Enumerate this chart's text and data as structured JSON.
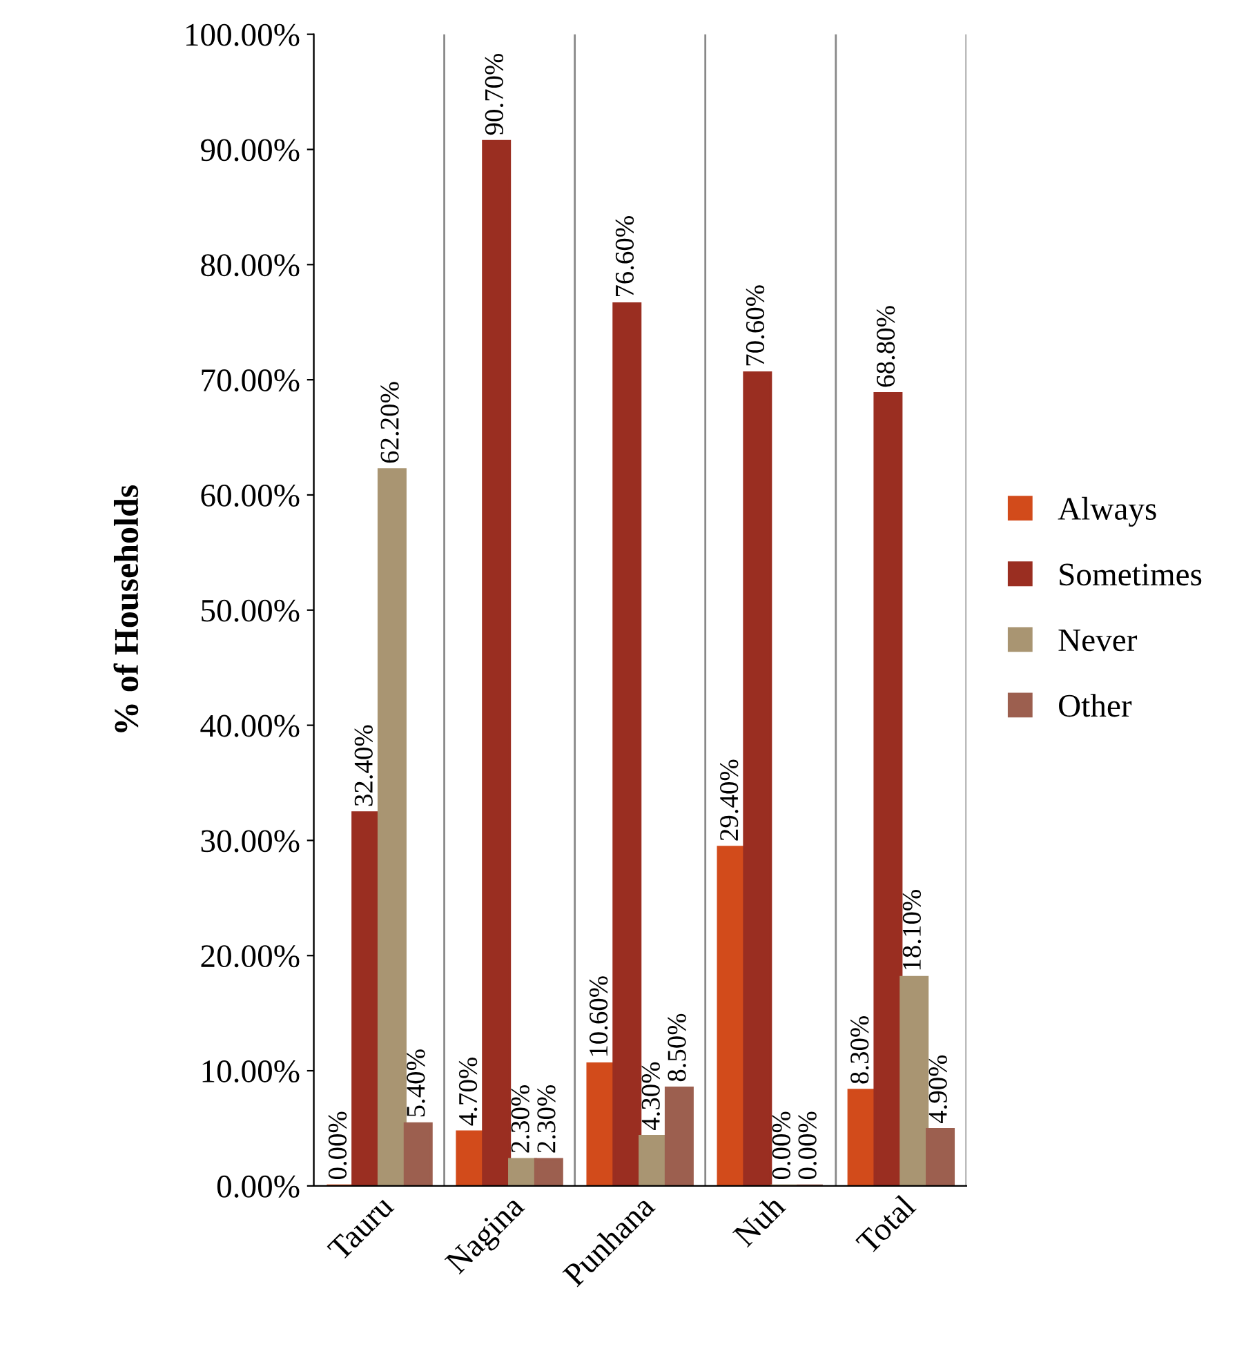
{
  "chart_data": {
    "type": "bar",
    "ylabel": "% of Households",
    "categories": [
      "Tauru",
      "Nagina",
      "Punhana",
      "Nuh",
      "Total"
    ],
    "series": [
      {
        "name": "Always",
        "color": "#d24b1b",
        "values": [
          0.0,
          4.7,
          10.6,
          29.4,
          8.3
        ],
        "value_labels": [
          "0.00%",
          "4.70%",
          "10.60%",
          "29.40%",
          "8.30%"
        ]
      },
      {
        "name": "Sometimes",
        "color": "#9a2e21",
        "values": [
          32.4,
          90.7,
          76.6,
          70.6,
          68.8
        ],
        "value_labels": [
          "32.40%",
          "90.70%",
          "76.60%",
          "70.60%",
          "68.80%"
        ]
      },
      {
        "name": "Never",
        "color": "#a99572",
        "values": [
          62.2,
          2.3,
          4.3,
          0.0,
          18.1
        ],
        "value_labels": [
          "62.20%",
          "2.30%",
          "4.30%",
          "0.00%",
          "18.10%"
        ]
      },
      {
        "name": "Other",
        "color": "#9c5f4f",
        "values": [
          5.4,
          2.3,
          8.5,
          0.0,
          4.9
        ],
        "value_labels": [
          "5.40%",
          "2.30%",
          "8.50%",
          "0.00%",
          "4.90%"
        ]
      }
    ],
    "ylim": [
      0,
      100
    ],
    "yticks": [
      {
        "value": 0,
        "label": "0.00%"
      },
      {
        "value": 10,
        "label": "10.00%"
      },
      {
        "value": 20,
        "label": "20.00%"
      },
      {
        "value": 30,
        "label": "30.00%"
      },
      {
        "value": 40,
        "label": "40.00%"
      },
      {
        "value": 50,
        "label": "50.00%"
      },
      {
        "value": 60,
        "label": "60.00%"
      },
      {
        "value": 70,
        "label": "70.00%"
      },
      {
        "value": 80,
        "label": "80.00%"
      },
      {
        "value": 90,
        "label": "90.00%"
      },
      {
        "value": 100,
        "label": "100.00%"
      }
    ],
    "grid": "x",
    "legend": "right"
  }
}
